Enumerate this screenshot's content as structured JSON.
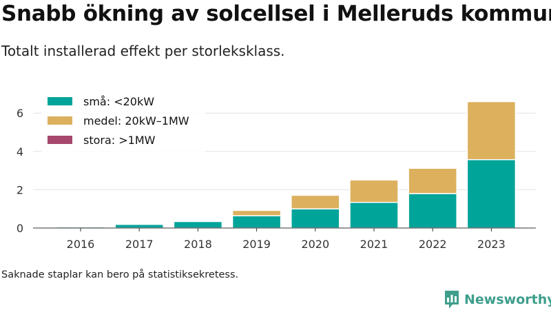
{
  "header": {
    "title": "Snabb ökning av solcellsel i Melleruds kommun",
    "subtitle": "Totalt installerad effekt per storleksklass."
  },
  "footer": {
    "note": "Saknade staplar kan bero på statistiksekretess.",
    "brand": "Newsworthy",
    "brand_icon": "newsworthy-logo-icon"
  },
  "chart_data": {
    "type": "bar",
    "stacked": true,
    "title": "",
    "xlabel": "",
    "ylabel": "",
    "categories": [
      "2016",
      "2017",
      "2018",
      "2019",
      "2020",
      "2021",
      "2022",
      "2023"
    ],
    "series": [
      {
        "name": "små: <20kW",
        "color": "#00a499",
        "values": [
          0.06,
          0.19,
          0.34,
          0.64,
          1.0,
          1.34,
          1.8,
          3.57
        ]
      },
      {
        "name": "medel: 20kW–1MW",
        "color": "#dcb05d",
        "values": [
          0,
          0,
          0,
          0.28,
          0.71,
          1.17,
          1.32,
          3.03
        ]
      },
      {
        "name": "stora: >1MW",
        "color": "#a8476d",
        "values": [
          0,
          0,
          0,
          0,
          0,
          0,
          0,
          0
        ]
      }
    ],
    "ylim": [
      0,
      7
    ],
    "yticks": [
      0,
      2,
      4,
      6
    ],
    "grid": true,
    "legend_position": "top-left"
  }
}
